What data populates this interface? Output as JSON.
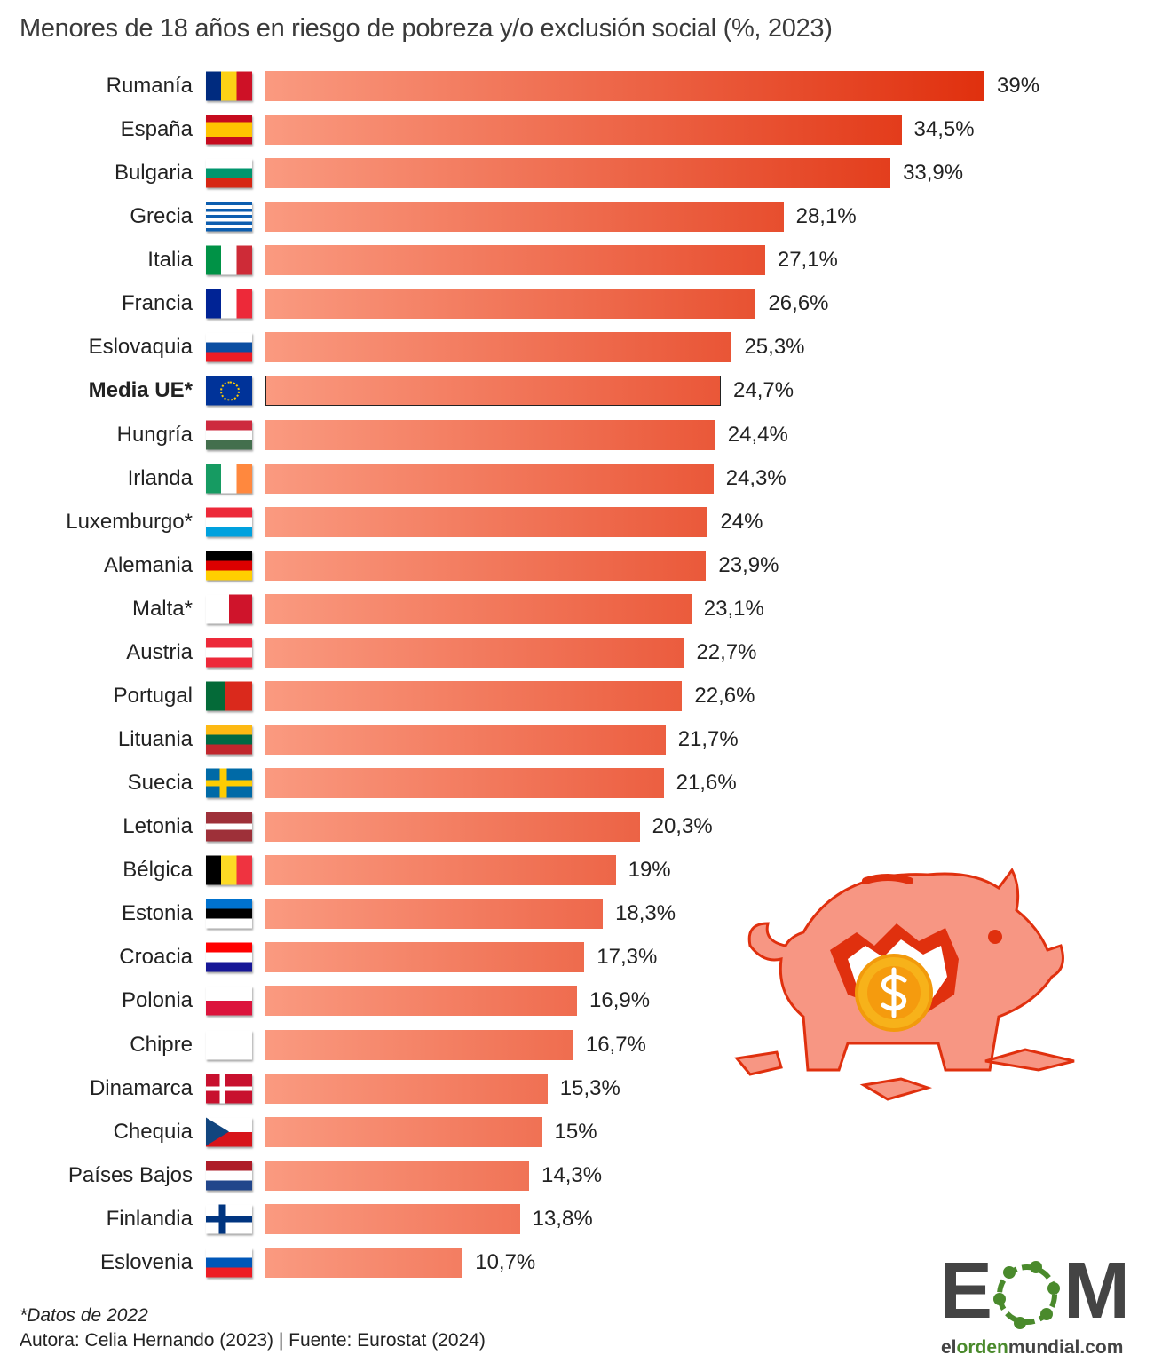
{
  "title": "Menores de 18 años en riesgo de pobreza y/o exclusión social (%, 2023)",
  "chart_data": {
    "type": "bar",
    "orientation": "horizontal",
    "title": "Menores de 18 años en riesgo de pobreza y/o exclusión social (%, 2023)",
    "xlim": [
      0,
      39
    ],
    "grid": false,
    "categories": [
      "Rumanía",
      "España",
      "Bulgaria",
      "Grecia",
      "Italia",
      "Francia",
      "Eslovaquia",
      "Media UE*",
      "Hungría",
      "Irlanda",
      "Luxemburgo*",
      "Alemania",
      "Malta*",
      "Austria",
      "Portugal",
      "Lituania",
      "Suecia",
      "Letonia",
      "Bélgica",
      "Estonia",
      "Croacia",
      "Polonia",
      "Chipre",
      "Dinamarca",
      "Chequia",
      "Países Bajos",
      "Finlandia",
      "Eslovenia"
    ],
    "values": [
      39,
      34.5,
      33.9,
      28.1,
      27.1,
      26.6,
      25.3,
      24.7,
      24.4,
      24.3,
      24,
      23.9,
      23.1,
      22.7,
      22.6,
      21.7,
      21.6,
      20.3,
      19,
      18.3,
      17.3,
      16.9,
      16.7,
      15.3,
      15,
      14.3,
      13.8,
      10.7
    ],
    "value_labels": [
      "39%",
      "34,5%",
      "33,9%",
      "28,1%",
      "27,1%",
      "26,6%",
      "25,3%",
      "24,7%",
      "24,4%",
      "24,3%",
      "24%",
      "23,9%",
      "23,1%",
      "22,7%",
      "22,6%",
      "21,7%",
      "21,6%",
      "20,3%",
      "19%",
      "18,3%",
      "17,3%",
      "16,9%",
      "16,7%",
      "15,3%",
      "15%",
      "14,3%",
      "13,8%",
      "10,7%"
    ],
    "flags": [
      "flag-romania",
      "flag-spain",
      "flag-bulgaria",
      "flag-greece",
      "flag-italy",
      "flag-france",
      "flag-slovakia",
      "flag-eu",
      "flag-hungary",
      "flag-ireland",
      "flag-luxembourg",
      "flag-germany",
      "flag-malta",
      "flag-austria",
      "flag-portugal",
      "flag-lithuania",
      "flag-sweden",
      "flag-latvia",
      "flag-belgium",
      "flag-estonia",
      "flag-croatia",
      "flag-poland",
      "flag-cyprus",
      "flag-denmark",
      "flag-czechia",
      "flag-netherlands",
      "flag-finland",
      "flag-slovenia"
    ],
    "highlight": "Media UE*",
    "bar_gradient": [
      "#fa9a80",
      "#e0300e"
    ]
  },
  "footnote": "*Datos de 2022",
  "source": "Autora: Celia Hernando (2023) | Fuente: Eurostat (2024)",
  "logo": {
    "letters": "EOM",
    "url": "elordenmundial.com",
    "green": "#4a8a2c",
    "gray": "#444444"
  }
}
